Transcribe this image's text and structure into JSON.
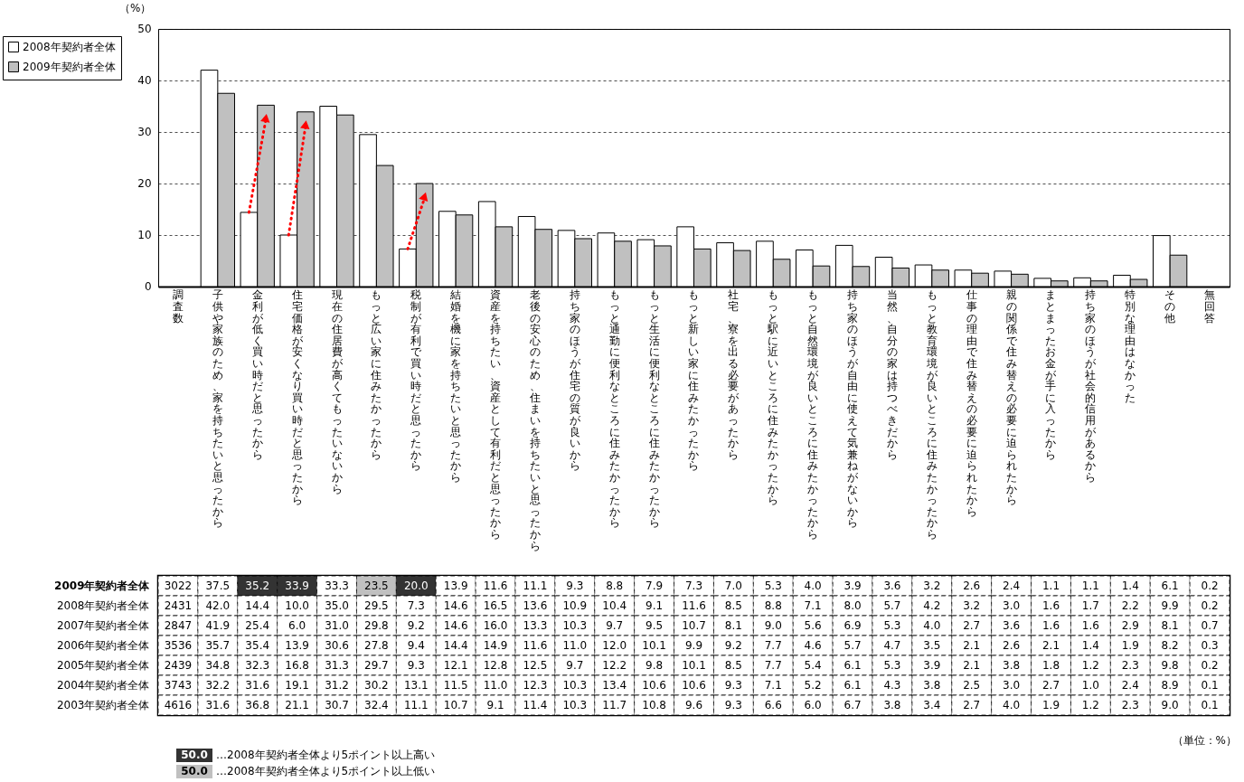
{
  "chart_data": [
    {
      "type": "bar",
      "categories": [
        "調査数",
        "子供や家族のため、家を持ちたいと思ったから",
        "金利が低く買い時だと思ったから",
        "住宅価格が安くなり買い時だと思ったから",
        "現在の住居費が高くてもったいないから",
        "もっと広い家に住みたかったから",
        "税制が有利で買い時だと思ったから",
        "結婚を機に家を持ちたいと思ったから",
        "資産を持ちたい、資産として有利だと思ったから",
        "老後の安心のため、住まいを持ちたいと思ったから",
        "持ち家のほうが住宅の質が良いから",
        "もっと通勤に便利なところに住みたかったから",
        "もっと生活に便利なところに住みたかったから",
        "もっと新しい家に住みたかったから",
        "社宅、寮を出る必要があったから",
        "もっと駅に近いところに住みたかったから",
        "もっと自然環境が良いところに住みたかったから",
        "持ち家のほうが自由に使えて気兼ねがないから",
        "当然、自分の家は持つべきだから",
        "もっと教育環境が良いところに住みたかったから",
        "仕事の理由で住み替えの必要に迫られたから",
        "親の関係で住み替えの必要に迫られたから",
        "まとまったお金が手に入ったから",
        "持ち家のほうが社会的信用があるから",
        "特別な理由はなかった",
        "その他",
        "無回答"
      ],
      "series": [
        {
          "name": "2008年契約者全体",
          "color": "#ffffff",
          "values": [
            null,
            42.0,
            14.4,
            10.0,
            35.0,
            29.5,
            7.3,
            14.6,
            16.5,
            13.6,
            10.9,
            10.4,
            9.1,
            11.6,
            8.5,
            8.8,
            7.1,
            8.0,
            5.7,
            4.2,
            3.2,
            3.0,
            1.6,
            1.7,
            2.2,
            9.9,
            null
          ]
        },
        {
          "name": "2009年契約者全体",
          "color": "#c0c0c0",
          "values": [
            null,
            37.5,
            35.2,
            33.9,
            33.3,
            23.5,
            20.0,
            13.9,
            11.6,
            11.1,
            9.3,
            8.8,
            7.9,
            7.3,
            7.0,
            5.3,
            4.0,
            3.9,
            3.6,
            3.2,
            2.6,
            2.4,
            1.1,
            1.1,
            1.4,
            6.1,
            null
          ]
        }
      ],
      "ylabel": "（%）",
      "ylim": [
        0,
        50
      ],
      "yticks": [
        0,
        10,
        20,
        30,
        40,
        50
      ],
      "grid": "y",
      "legend": "top left"
    },
    {
      "type": "heatmap",
      "categories": [
        "調査数",
        "子供や家族のため、家を持ちたいと思ったから",
        "金利が低く買い時だと思ったから",
        "住宅価格が安くなり買い時だと思ったから",
        "現在の住居費が高くてもったいないから",
        "もっと広い家に住みたかったから",
        "税制が有利で買い時だと思ったから",
        "結婚を機に家を持ちたいと思ったから",
        "資産を持ちたい、資産として有利だと思ったから",
        "老後の安心のため、住まいを持ちたいと思ったから",
        "持ち家のほうが住宅の質が良いから",
        "もっと通勤に便利なところに住みたかったから",
        "もっと生活に便利なところに住みたかったから",
        "もっと新しい家に住みたかったから",
        "社宅、寮を出る必要があったから",
        "もっと駅に近いところに住みたかったから",
        "もっと自然環境が良いところに住みたかったから",
        "持ち家のほうが自由に使えて気兼ねがないから",
        "当然、自分の家は持つべきだから",
        "もっと教育環境が良いところに住みたかったから",
        "仕事の理由で住み替えの必要に迫られたから",
        "親の関係で住み替えの必要に迫られたから",
        "まとまったお金が手に入ったから",
        "持ち家のほうが社会的信用があるから",
        "特別な理由はなかった",
        "その他",
        "無回答"
      ],
      "y_categories": [
        "2009年契約者全体",
        "2008年契約者全体",
        "2007年契約者全体",
        "2006年契約者全体",
        "2005年契約者全体",
        "2004年契約者全体",
        "2003年契約者全体"
      ],
      "cells": [
        [
          3022,
          37.5,
          35.2,
          33.9,
          33.3,
          23.5,
          20.0,
          13.9,
          11.6,
          11.1,
          9.3,
          8.8,
          7.9,
          7.3,
          7.0,
          5.3,
          4.0,
          3.9,
          3.6,
          3.2,
          2.6,
          2.4,
          1.1,
          1.1,
          1.4,
          6.1,
          0.2
        ],
        [
          2431,
          42.0,
          14.4,
          10.0,
          35.0,
          29.5,
          7.3,
          14.6,
          16.5,
          13.6,
          10.9,
          10.4,
          9.1,
          11.6,
          8.5,
          8.8,
          7.1,
          8.0,
          5.7,
          4.2,
          3.2,
          3.0,
          1.6,
          1.7,
          2.2,
          9.9,
          0.2
        ],
        [
          2847,
          41.9,
          25.4,
          6.0,
          31.0,
          29.8,
          9.2,
          14.6,
          16.0,
          13.3,
          10.3,
          9.7,
          9.5,
          10.7,
          8.1,
          9.0,
          5.6,
          6.9,
          5.3,
          4.0,
          2.7,
          3.6,
          1.6,
          1.6,
          2.9,
          8.1,
          0.7
        ],
        [
          3536,
          35.7,
          35.4,
          13.9,
          30.6,
          27.8,
          9.4,
          14.4,
          14.9,
          11.6,
          11.0,
          12.0,
          10.1,
          9.9,
          9.2,
          7.7,
          4.6,
          5.7,
          4.7,
          3.5,
          2.1,
          2.6,
          2.1,
          1.4,
          1.9,
          8.2,
          0.3
        ],
        [
          2439,
          34.8,
          32.3,
          16.8,
          31.3,
          29.7,
          9.3,
          12.1,
          12.8,
          12.5,
          9.7,
          12.2,
          9.8,
          10.1,
          8.5,
          7.7,
          5.4,
          6.1,
          5.3,
          3.9,
          2.1,
          3.8,
          1.8,
          1.2,
          2.3,
          9.8,
          0.2
        ],
        [
          3743,
          32.2,
          31.6,
          19.1,
          31.2,
          30.2,
          13.1,
          11.5,
          11.0,
          12.3,
          10.3,
          13.4,
          10.6,
          10.6,
          9.3,
          7.1,
          5.2,
          6.1,
          4.3,
          3.8,
          2.5,
          3.0,
          2.7,
          1.0,
          2.4,
          8.9,
          0.1
        ],
        [
          4616,
          31.6,
          36.8,
          21.1,
          30.7,
          32.4,
          11.1,
          10.7,
          9.1,
          11.4,
          10.3,
          11.7,
          10.8,
          9.6,
          9.3,
          6.6,
          6.0,
          6.7,
          3.8,
          3.4,
          2.7,
          4.0,
          1.9,
          1.2,
          2.3,
          9.0,
          0.1
        ]
      ],
      "cell_labels": [
        [
          "3022",
          "37.5",
          "35.2",
          "33.9",
          "33.3",
          "23.5",
          "20.0",
          "13.9",
          "11.6",
          "11.1",
          "9.3",
          "8.8",
          "7.9",
          "7.3",
          "7.0",
          "5.3",
          "4.0",
          "3.9",
          "3.6",
          "3.2",
          "2.6",
          "2.4",
          "1.1",
          "1.1",
          "1.4",
          "6.1",
          "0.2"
        ],
        [
          "2431",
          "42.0",
          "14.4",
          "10.0",
          "35.0",
          "29.5",
          "7.3",
          "14.6",
          "16.5",
          "13.6",
          "10.9",
          "10.4",
          "9.1",
          "11.6",
          "8.5",
          "8.8",
          "7.1",
          "8.0",
          "5.7",
          "4.2",
          "3.2",
          "3.0",
          "1.6",
          "1.7",
          "2.2",
          "9.9",
          "0.2"
        ],
        [
          "2847",
          "41.9",
          "25.4",
          "6.0",
          "31.0",
          "29.8",
          "9.2",
          "14.6",
          "16.0",
          "13.3",
          "10.3",
          "9.7",
          "9.5",
          "10.7",
          "8.1",
          "9.0",
          "5.6",
          "6.9",
          "5.3",
          "4.0",
          "2.7",
          "3.6",
          "1.6",
          "1.6",
          "2.9",
          "8.1",
          "0.7"
        ],
        [
          "3536",
          "35.7",
          "35.4",
          "13.9",
          "30.6",
          "27.8",
          "9.4",
          "14.4",
          "14.9",
          "11.6",
          "11.0",
          "12.0",
          "10.1",
          "9.9",
          "9.2",
          "7.7",
          "4.6",
          "5.7",
          "4.7",
          "3.5",
          "2.1",
          "2.6",
          "2.1",
          "1.4",
          "1.9",
          "8.2",
          "0.3"
        ],
        [
          "2439",
          "34.8",
          "32.3",
          "16.8",
          "31.3",
          "29.7",
          "9.3",
          "12.1",
          "12.8",
          "12.5",
          "9.7",
          "12.2",
          "9.8",
          "10.1",
          "8.5",
          "7.7",
          "5.4",
          "6.1",
          "5.3",
          "3.9",
          "2.1",
          "3.8",
          "1.8",
          "1.2",
          "2.3",
          "9.8",
          "0.2"
        ],
        [
          "3743",
          "32.2",
          "31.6",
          "19.1",
          "31.2",
          "30.2",
          "13.1",
          "11.5",
          "11.0",
          "12.3",
          "10.3",
          "13.4",
          "10.6",
          "10.6",
          "9.3",
          "7.1",
          "5.2",
          "6.1",
          "4.3",
          "3.8",
          "2.5",
          "3.0",
          "2.7",
          "1.0",
          "2.4",
          "8.9",
          "0.1"
        ],
        [
          "4616",
          "31.6",
          "36.8",
          "21.1",
          "30.7",
          "32.4",
          "11.1",
          "10.7",
          "9.1",
          "11.4",
          "10.3",
          "11.7",
          "10.8",
          "9.6",
          "9.3",
          "6.6",
          "6.0",
          "6.7",
          "3.8",
          "3.4",
          "2.7",
          "4.0",
          "1.9",
          "1.2",
          "2.3",
          "9.0",
          "0.1"
        ]
      ],
      "tick_labels": "y",
      "annotations": [
        "（単位：%）",
        "50.0",
        "…2008年契約者全体より5ポイント以上高い",
        "50.0",
        "…2008年契約者全体より5ポイント以上低い"
      ]
    }
  ]
}
